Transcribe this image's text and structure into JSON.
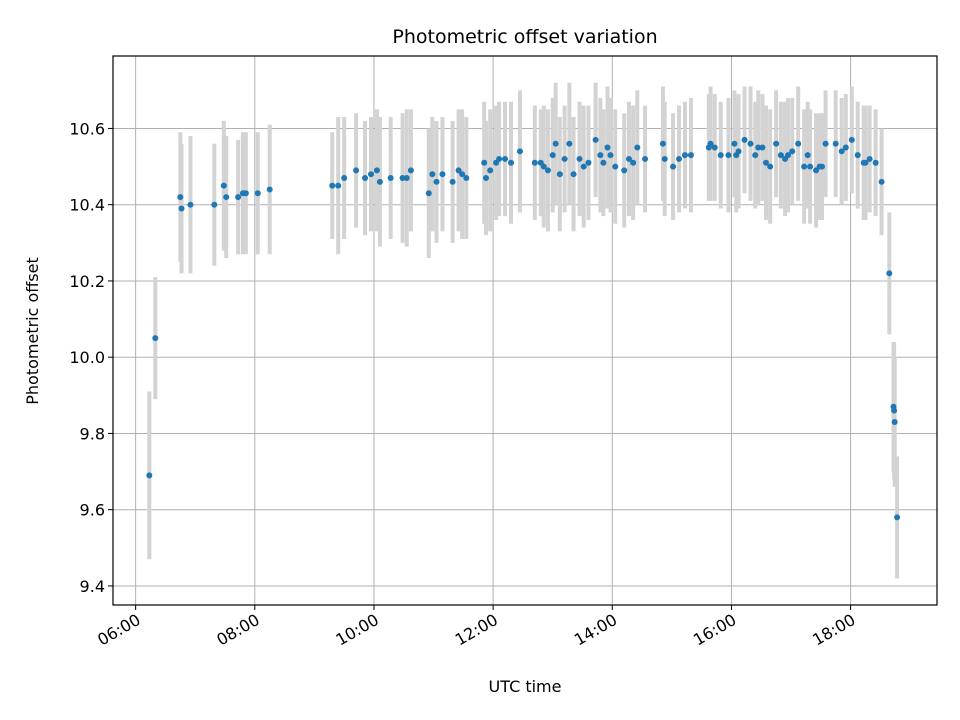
{
  "chart_data": {
    "type": "scatter",
    "title": "Photometric offset variation",
    "xlabel": "UTC time",
    "ylabel": "Photometric offset",
    "x_unit": "hours (UTC)",
    "xlim": [
      5.62,
      19.45
    ],
    "ylim": [
      9.35,
      10.79
    ],
    "grid": true,
    "xticks": [
      {
        "value": 6,
        "label": "06:00"
      },
      {
        "value": 8,
        "label": "08:00"
      },
      {
        "value": 10,
        "label": "10:00"
      },
      {
        "value": 12,
        "label": "12:00"
      },
      {
        "value": 14,
        "label": "14:00"
      },
      {
        "value": 16,
        "label": "16:00"
      },
      {
        "value": 18,
        "label": "18:00"
      }
    ],
    "yticks": [
      {
        "value": 9.4,
        "label": "9.4"
      },
      {
        "value": 9.6,
        "label": "9.6"
      },
      {
        "value": 9.8,
        "label": "9.8"
      },
      {
        "value": 10.0,
        "label": "10.0"
      },
      {
        "value": 10.2,
        "label": "10.2"
      },
      {
        "value": 10.4,
        "label": "10.4"
      },
      {
        "value": 10.6,
        "label": "10.6"
      }
    ],
    "colors": {
      "point": "#1f77b4",
      "errorbar": "#d3d3d3",
      "grid": "#b0b0b0"
    },
    "series": [
      {
        "x": [
          6.23,
          6.33,
          6.75,
          6.77,
          6.92,
          7.32,
          7.48,
          7.52,
          7.72,
          7.8,
          7.85,
          8.05,
          8.25,
          9.3,
          9.4,
          9.5,
          9.7,
          9.85,
          9.95,
          10.05,
          10.1,
          10.28,
          10.48,
          10.55,
          10.62,
          10.92,
          10.98,
          11.05,
          11.15,
          11.32,
          11.42,
          11.48,
          11.55,
          11.85,
          11.88,
          11.95,
          12.05,
          12.1,
          12.2,
          12.3,
          12.45,
          12.7,
          12.8,
          12.85,
          12.92,
          13.0,
          13.05,
          13.12,
          13.2,
          13.28,
          13.35,
          13.45,
          13.52,
          13.6,
          13.72,
          13.8,
          13.85,
          13.92,
          13.97,
          14.05,
          14.2,
          14.28,
          14.35,
          14.42,
          14.55,
          14.85,
          14.88,
          15.02,
          15.12,
          15.22,
          15.32,
          15.62,
          15.65,
          15.72,
          15.82,
          15.95,
          16.05,
          16.08,
          16.12,
          16.22,
          16.32,
          16.4,
          16.45,
          16.52,
          16.58,
          16.65,
          16.75,
          16.83,
          16.9,
          16.95,
          17.02,
          17.12,
          17.22,
          17.28,
          17.32,
          17.42,
          17.48,
          17.52,
          17.58,
          17.75,
          17.85,
          17.92,
          18.02,
          18.12,
          18.22,
          18.25,
          18.32,
          18.42,
          18.52,
          18.65,
          18.72,
          18.73,
          18.74,
          18.78
        ],
        "y": [
          9.69,
          10.05,
          10.42,
          10.39,
          10.4,
          10.4,
          10.45,
          10.42,
          10.42,
          10.43,
          10.43,
          10.43,
          10.44,
          10.45,
          10.45,
          10.47,
          10.49,
          10.47,
          10.48,
          10.49,
          10.46,
          10.47,
          10.47,
          10.47,
          10.49,
          10.43,
          10.48,
          10.46,
          10.48,
          10.46,
          10.49,
          10.48,
          10.47,
          10.51,
          10.47,
          10.49,
          10.51,
          10.52,
          10.52,
          10.51,
          10.54,
          10.51,
          10.51,
          10.5,
          10.49,
          10.53,
          10.56,
          10.48,
          10.52,
          10.56,
          10.48,
          10.52,
          10.5,
          10.51,
          10.57,
          10.53,
          10.51,
          10.55,
          10.53,
          10.5,
          10.49,
          10.52,
          10.51,
          10.55,
          10.52,
          10.56,
          10.52,
          10.5,
          10.52,
          10.53,
          10.53,
          10.55,
          10.56,
          10.55,
          10.53,
          10.53,
          10.56,
          10.53,
          10.54,
          10.57,
          10.56,
          10.53,
          10.55,
          10.55,
          10.51,
          10.5,
          10.56,
          10.53,
          10.52,
          10.53,
          10.54,
          10.56,
          10.5,
          10.53,
          10.5,
          10.49,
          10.5,
          10.5,
          10.56,
          10.56,
          10.54,
          10.55,
          10.57,
          10.53,
          10.51,
          10.51,
          10.52,
          10.51,
          10.46,
          10.22,
          9.87,
          9.86,
          9.83,
          9.58
        ],
        "yerr": [
          0.22,
          0.16,
          0.17,
          0.17,
          0.18,
          0.16,
          0.17,
          0.16,
          0.15,
          0.16,
          0.16,
          0.16,
          0.17,
          0.14,
          0.18,
          0.16,
          0.15,
          0.15,
          0.15,
          0.16,
          0.17,
          0.16,
          0.17,
          0.18,
          0.16,
          0.17,
          0.15,
          0.16,
          0.15,
          0.16,
          0.16,
          0.17,
          0.16,
          0.16,
          0.15,
          0.16,
          0.15,
          0.15,
          0.15,
          0.16,
          0.16,
          0.15,
          0.14,
          0.16,
          0.16,
          0.15,
          0.16,
          0.15,
          0.14,
          0.16,
          0.15,
          0.15,
          0.16,
          0.15,
          0.15,
          0.15,
          0.14,
          0.16,
          0.15,
          0.15,
          0.15,
          0.15,
          0.15,
          0.15,
          0.14,
          0.15,
          0.15,
          0.14,
          0.14,
          0.14,
          0.15,
          0.14,
          0.15,
          0.14,
          0.14,
          0.15,
          0.14,
          0.15,
          0.15,
          0.14,
          0.15,
          0.14,
          0.15,
          0.14,
          0.15,
          0.15,
          0.14,
          0.14,
          0.15,
          0.15,
          0.14,
          0.15,
          0.15,
          0.14,
          0.15,
          0.15,
          0.14,
          0.14,
          0.14,
          0.14,
          0.14,
          0.14,
          0.14,
          0.14,
          0.15,
          0.15,
          0.14,
          0.14,
          0.14,
          0.16,
          0.17,
          0.18,
          0.17,
          0.16
        ]
      }
    ]
  }
}
